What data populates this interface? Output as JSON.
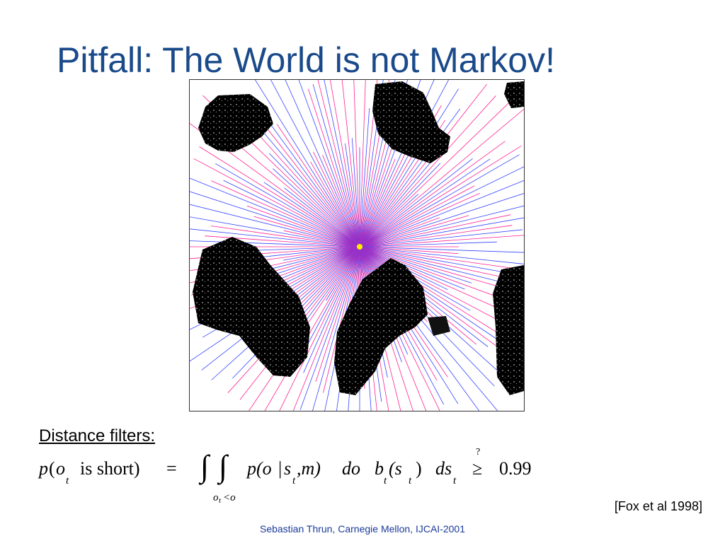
{
  "slide": {
    "title": "Pitfall: The World is not Markov!",
    "filters_label": "Distance filters:",
    "citation": "[Fox et al 1998]",
    "footer": "Sebastian Thrun, Carnegie Mellon, IJCAI-2001"
  },
  "formula": {
    "p": "p",
    "open": "(",
    "o_t": "o",
    "sub_t": "t",
    "is_short": "is short)",
    "equals": "=",
    "integral": "∫",
    "limit_o": "o",
    "limit_t": "t",
    "limit_rest": "<o",
    "p_open": "p(o",
    "bar": "|",
    "s": "s",
    "comma_m": ",m)",
    "do": "do",
    "b": "b",
    "paren_s": "(s",
    "close": ")",
    "ds": "ds",
    "question": "?",
    "geq": "≥",
    "value": "0.99"
  },
  "colors": {
    "title": "#1a4a8a",
    "footer": "#1a3a9a",
    "beam_pink": "#ff1f8f",
    "beam_blue": "#3344ff",
    "robot": "#ffee00"
  },
  "figure": {
    "icon": "occupancy-map-with-laser-beams"
  }
}
